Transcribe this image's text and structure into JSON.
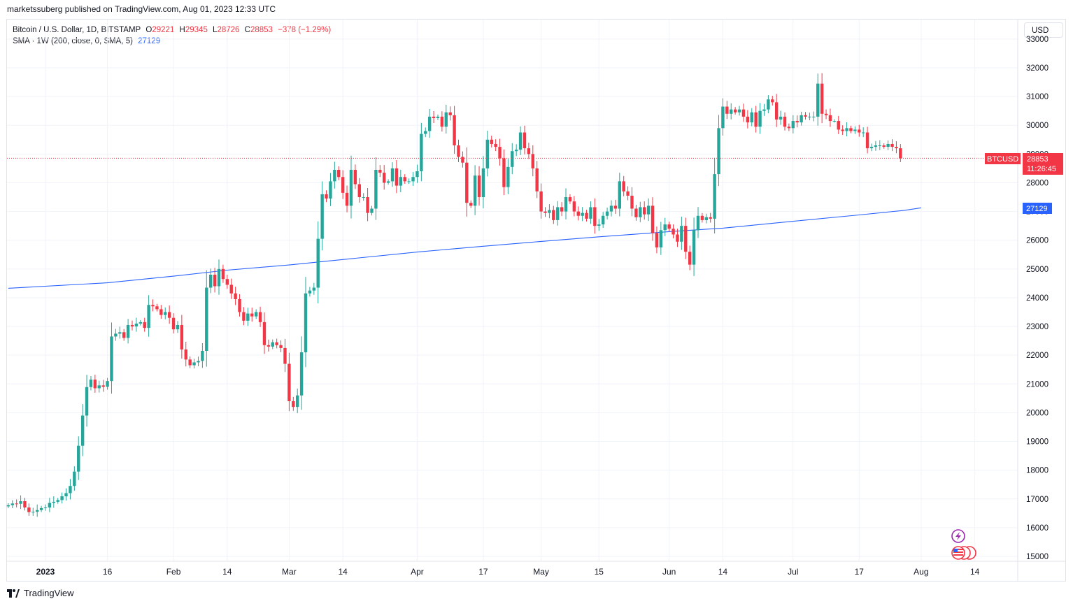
{
  "header": {
    "published": "marketssuberg published on TradingView.com, Aug 01, 2023 12:33 UTC"
  },
  "legend": {
    "symbol": "Bitcoin / U.S. Dollar, 1D, BITSTAMP",
    "o_label": "O",
    "o_value": "29221",
    "h_label": "H",
    "h_value": "29345",
    "l_label": "L",
    "l_value": "28726",
    "c_label": "C",
    "c_value": "28853",
    "change": "−378 (−1.29%)",
    "sma_label": "SMA · 1W (200, close, 0, SMA, 5)",
    "sma_value": "27129"
  },
  "currency_button": "USD",
  "price_tag": {
    "symbol": "BTCUSD",
    "price": "28853",
    "countdown": "11:26:45"
  },
  "sma_tag": "27129",
  "footer": {
    "brand": "TradingView"
  },
  "colors": {
    "up": "#26a69a",
    "down": "#f23645",
    "sma": "#2962ff",
    "grid": "#f0f3fa"
  },
  "icons": [
    "lightning-event-icon",
    "us-flag-event-icon"
  ],
  "chart_data": {
    "type": "candlestick",
    "title": "Bitcoin / U.S. Dollar, 1D, BITSTAMP",
    "ylim": [
      14800,
      33200
    ],
    "y_ticks": [
      "15000",
      "16000",
      "17000",
      "18000",
      "19000",
      "20000",
      "21000",
      "22000",
      "23000",
      "24000",
      "25000",
      "26000",
      "27000",
      "28000",
      "29000",
      "30000",
      "31000",
      "32000",
      "33000"
    ],
    "x_ticks": [
      "2023",
      "16",
      "Feb",
      "14",
      "Mar",
      "14",
      "Apr",
      "17",
      "May",
      "15",
      "Jun",
      "14",
      "Jul",
      "17",
      "Aug",
      "14"
    ],
    "x_tick_dates": [
      "2023-01-01",
      "2023-01-16",
      "2023-02-01",
      "2023-02-14",
      "2023-03-01",
      "2023-03-14",
      "2023-04-01",
      "2023-04-17",
      "2023-05-01",
      "2023-05-15",
      "2023-06-01",
      "2023-06-14",
      "2023-07-01",
      "2023-07-17",
      "2023-08-01",
      "2023-08-14"
    ],
    "x_range": [
      "2022-12-23",
      "2023-08-16"
    ],
    "last_price": 28853,
    "close_start_date": "2022-12-23",
    "closes": [
      16780,
      16840,
      16830,
      16920,
      16700,
      16540,
      16550,
      16610,
      16680,
      16700,
      16860,
      16900,
      16960,
      17090,
      17200,
      17450,
      17950,
      18850,
      19900,
      20890,
      21150,
      20850,
      20950,
      20900,
      21100,
      22650,
      22750,
      22800,
      22600,
      23050,
      23000,
      23100,
      23150,
      22950,
      23750,
      23700,
      23600,
      23400,
      23500,
      23300,
      22900,
      23050,
      22200,
      21850,
      21650,
      21750,
      21800,
      22150,
      24350,
      24800,
      24400,
      25000,
      24650,
      24450,
      24150,
      23950,
      23500,
      23200,
      23450,
      23350,
      23500,
      23150,
      22350,
      22300,
      22450,
      22350,
      22250,
      21700,
      20400,
      20200,
      20600,
      22100,
      24150,
      24250,
      24350,
      26050,
      27600,
      27450,
      28050,
      28450,
      28200,
      27650,
      27200,
      28450,
      27950,
      27500,
      27500,
      26950,
      27100,
      28450,
      28350,
      28000,
      28050,
      28500,
      27900,
      28200,
      28050,
      28050,
      28200,
      28400,
      29700,
      29800,
      30300,
      30250,
      30300,
      29950,
      30450,
      30350,
      29300,
      28900,
      28700,
      27300,
      27200,
      28250,
      27500,
      28500,
      29500,
      29350,
      29250,
      28850,
      27850,
      28550,
      29100,
      29150,
      29750,
      29200,
      29000,
      28500,
      27700,
      27000,
      26950,
      27050,
      26700,
      27150,
      27000,
      27500,
      27350,
      27000,
      26850,
      26950,
      26750,
      27150,
      26500,
      26550,
      26850,
      27000,
      27200,
      27100,
      28050,
      27700,
      27550,
      27100,
      26800,
      27150,
      26900,
      27200,
      26250,
      25750,
      26350,
      26550,
      26400,
      26200,
      25950,
      26500,
      25600,
      25150,
      26350,
      26850,
      26700,
      26800,
      26750,
      28300,
      29900,
      30650,
      30400,
      30550,
      30450,
      30550,
      30300,
      30100,
      30450,
      29950,
      30500,
      30550,
      30900,
      30800,
      30200,
      30300,
      29950,
      29900,
      30150,
      30100,
      30350,
      30300,
      30300,
      30300,
      31450,
      30400,
      30350,
      30150,
      30150,
      29850,
      29800,
      29900,
      29800,
      29850,
      29750,
      29750,
      29200,
      29250,
      29300,
      29300,
      29250,
      29350,
      29250,
      29200,
      28850
    ],
    "sma": [
      {
        "x": "2022-12-23",
        "y": 24330
      },
      {
        "x": "2023-01-16",
        "y": 24520
      },
      {
        "x": "2023-02-01",
        "y": 24750
      },
      {
        "x": "2023-02-14",
        "y": 24960
      },
      {
        "x": "2023-03-01",
        "y": 25140
      },
      {
        "x": "2023-03-14",
        "y": 25330
      },
      {
        "x": "2023-04-01",
        "y": 25590
      },
      {
        "x": "2023-04-17",
        "y": 25790
      },
      {
        "x": "2023-05-01",
        "y": 25960
      },
      {
        "x": "2023-05-15",
        "y": 26120
      },
      {
        "x": "2023-06-01",
        "y": 26300
      },
      {
        "x": "2023-06-14",
        "y": 26420
      },
      {
        "x": "2023-07-01",
        "y": 26660
      },
      {
        "x": "2023-07-17",
        "y": 26880
      },
      {
        "x": "2023-07-28",
        "y": 27040
      },
      {
        "x": "2023-08-01",
        "y": 27129
      }
    ]
  }
}
